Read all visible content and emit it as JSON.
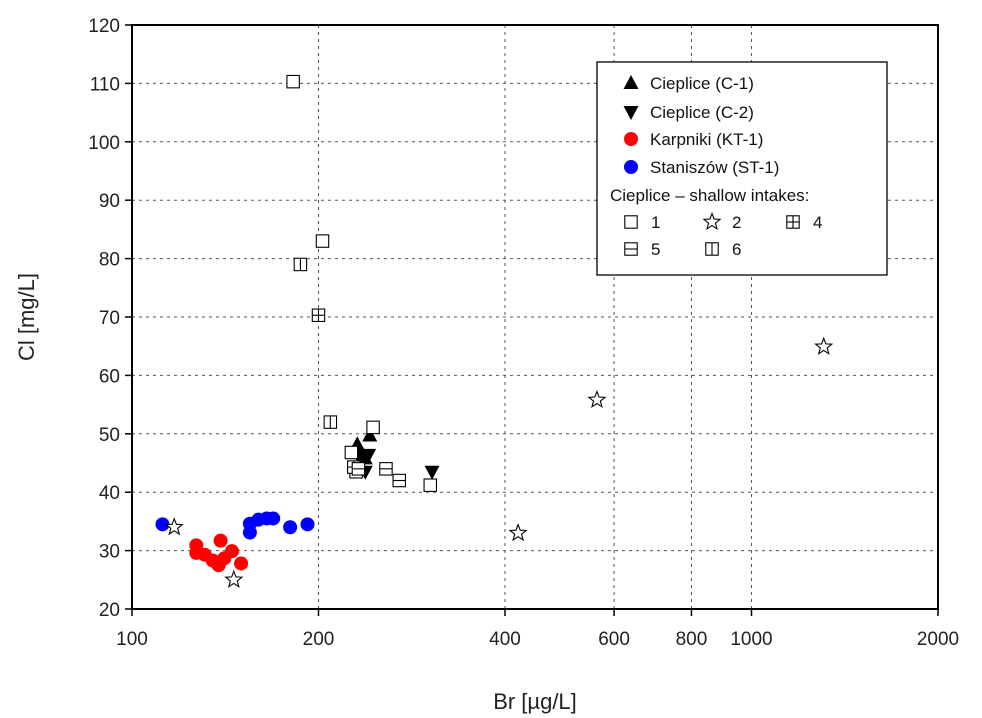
{
  "chart_data": {
    "type": "scatter",
    "xlabel": "Br [µg/L]",
    "ylabel": "Cl [mg/L]",
    "x_scale": "log",
    "xlim": [
      100,
      2000
    ],
    "ylim": [
      20,
      120
    ],
    "x_ticks": [
      100,
      200,
      400,
      600,
      800,
      1000,
      2000
    ],
    "y_ticks": [
      20,
      30,
      40,
      50,
      60,
      70,
      80,
      90,
      100,
      110,
      120
    ],
    "grid": true,
    "legend_position": "top-right",
    "legend_group_title": "Cieplice – shallow intakes:",
    "series": [
      {
        "name": "Cieplice (C-1)",
        "marker": "triangle-up",
        "color": "#000000",
        "points": [
          [
            231,
            48.2
          ],
          [
            242,
            49.7
          ],
          [
            235,
            46.7
          ],
          [
            238,
            45.8
          ]
        ]
      },
      {
        "name": "Cieplice (C-2)",
        "marker": "triangle-down",
        "color": "#000000",
        "points": [
          [
            234,
            45.5
          ],
          [
            241,
            46.4
          ],
          [
            238,
            43.5
          ],
          [
            305,
            43.5
          ],
          [
            232,
            46.2
          ]
        ]
      },
      {
        "name": "Karpniki (KT-1)",
        "marker": "circle",
        "color": "#ff0000",
        "points": [
          [
            127,
            30.9
          ],
          [
            127,
            29.6
          ],
          [
            131,
            29.3
          ],
          [
            135,
            28.3
          ],
          [
            138,
            27.5
          ],
          [
            139,
            31.7
          ],
          [
            141,
            28.7
          ],
          [
            145,
            29.9
          ],
          [
            150,
            27.8
          ]
        ]
      },
      {
        "name": "Staniszów (ST-1)",
        "marker": "circle",
        "color": "#0000ff",
        "points": [
          [
            112,
            34.5
          ],
          [
            155,
            33.1
          ],
          [
            155,
            34.6
          ],
          [
            160,
            35.3
          ],
          [
            165,
            35.5
          ],
          [
            169,
            35.5
          ],
          [
            180,
            34.0
          ],
          [
            192,
            34.5
          ]
        ]
      },
      {
        "name": "1",
        "marker": "square-open",
        "color": "#000000",
        "points": [
          [
            182,
            110.3
          ],
          [
            203,
            83.0
          ],
          [
            226,
            46.8
          ],
          [
            230,
            43.5
          ],
          [
            245,
            51.1
          ],
          [
            303,
            41.2
          ]
        ]
      },
      {
        "name": "2",
        "marker": "star-open",
        "color": "#000000",
        "points": [
          [
            117,
            34.0
          ],
          [
            146,
            25.0
          ],
          [
            420,
            33.0
          ],
          [
            563,
            55.8
          ],
          [
            1308,
            64.9
          ]
        ]
      },
      {
        "name": "4",
        "marker": "square-plus",
        "color": "#000000",
        "points": [
          [
            200,
            70.3
          ],
          [
            228,
            44.3
          ]
        ]
      },
      {
        "name": "5",
        "marker": "square-hline",
        "color": "#000000",
        "points": [
          [
            232,
            44.0
          ],
          [
            257,
            44.0
          ],
          [
            270,
            42.0
          ]
        ]
      },
      {
        "name": "6",
        "marker": "square-vline",
        "color": "#000000",
        "points": [
          [
            187,
            79.0
          ],
          [
            209,
            52.0
          ]
        ]
      }
    ],
    "legend_rows": [
      {
        "type": "single",
        "series_index": 0
      },
      {
        "type": "single",
        "series_index": 1
      },
      {
        "type": "single",
        "series_index": 2
      },
      {
        "type": "single",
        "series_index": 3
      },
      {
        "type": "title"
      },
      {
        "type": "group",
        "series_indices": [
          4,
          5,
          6
        ]
      },
      {
        "type": "group",
        "series_indices": [
          7,
          8
        ]
      }
    ]
  }
}
